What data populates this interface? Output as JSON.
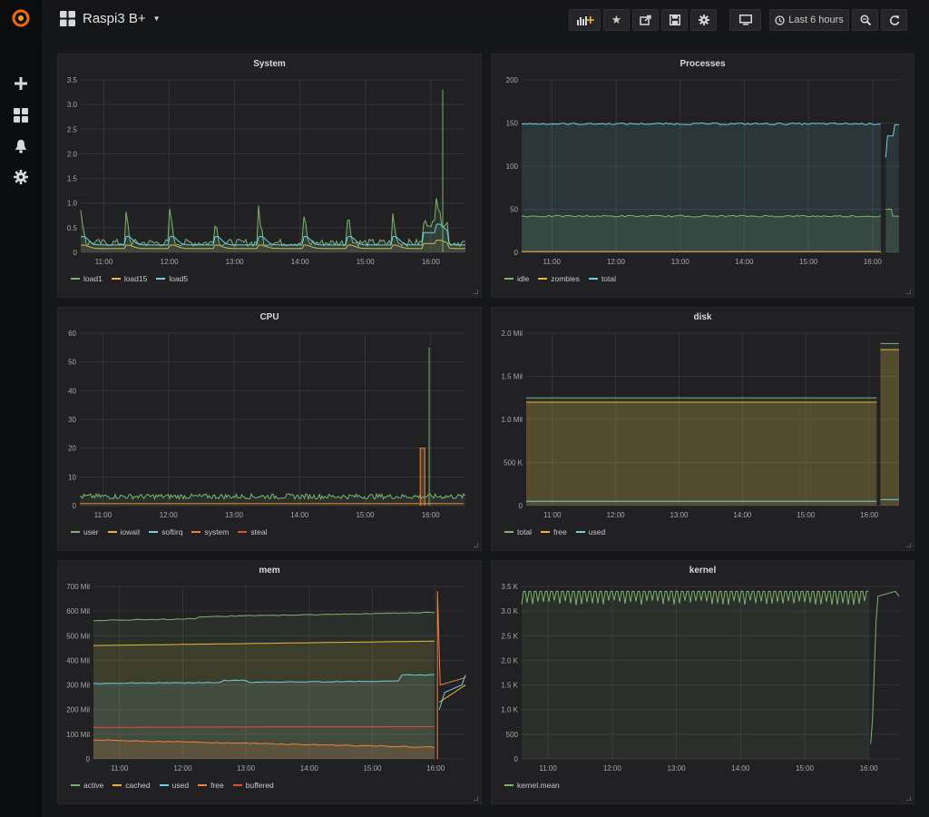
{
  "app": {
    "name": "Grafana"
  },
  "sidemenu": {
    "items": [
      {
        "icon": "plus-icon"
      },
      {
        "icon": "dashboards-icon"
      },
      {
        "icon": "bell-icon"
      },
      {
        "icon": "gear-icon"
      }
    ]
  },
  "dashboard": {
    "title": "Raspi3 B+"
  },
  "toolbar": {
    "add_panel": "add-panel-icon",
    "star": "star-icon",
    "share": "share-icon",
    "save": "save-icon",
    "settings": "gear-icon",
    "cycle_view": "monitor-icon",
    "time_picker_label": "Last 6 hours",
    "zoom_out": "zoom-out-icon",
    "refresh": "refresh-icon"
  },
  "colors": {
    "green": "#7eb26d",
    "yellow": "#eab839",
    "cyan": "#6ed0e0",
    "orange": "#ef843c",
    "red": "#e24d42"
  },
  "panels": [
    {
      "title": "System",
      "y_ticks": [
        "0",
        "0.5",
        "1.0",
        "1.5",
        "2.0",
        "2.5",
        "3.0",
        "3.5"
      ],
      "x_ticks": [
        "11:00",
        "12:00",
        "13:00",
        "14:00",
        "15:00",
        "16:00"
      ],
      "legend": [
        {
          "name": "load1",
          "color": "#7eb26d"
        },
        {
          "name": "load15",
          "color": "#eab839"
        },
        {
          "name": "load5",
          "color": "#6ed0e0"
        }
      ]
    },
    {
      "title": "Processes",
      "y_ticks": [
        "0",
        "50",
        "100",
        "150",
        "200"
      ],
      "x_ticks": [
        "11:00",
        "12:00",
        "13:00",
        "14:00",
        "15:00",
        "16:00"
      ],
      "legend": [
        {
          "name": "idle",
          "color": "#7eb26d"
        },
        {
          "name": "zombies",
          "color": "#eab839"
        },
        {
          "name": "total",
          "color": "#6ed0e0"
        }
      ]
    },
    {
      "title": "CPU",
      "y_ticks": [
        "0",
        "10",
        "20",
        "30",
        "40",
        "50",
        "60"
      ],
      "x_ticks": [
        "11:00",
        "12:00",
        "13:00",
        "14:00",
        "15:00",
        "16:00"
      ],
      "legend": [
        {
          "name": "user",
          "color": "#7eb26d"
        },
        {
          "name": "iowait",
          "color": "#eab839"
        },
        {
          "name": "softirq",
          "color": "#6ed0e0"
        },
        {
          "name": "system",
          "color": "#ef843c"
        },
        {
          "name": "steal",
          "color": "#e24d42"
        }
      ]
    },
    {
      "title": "disk",
      "y_ticks": [
        "0",
        "500 K",
        "1.0 Mil",
        "1.5 Mil",
        "2.0 Mil"
      ],
      "x_ticks": [
        "11:00",
        "12:00",
        "13:00",
        "14:00",
        "15:00",
        "16:00"
      ],
      "legend": [
        {
          "name": "total",
          "color": "#7eb26d"
        },
        {
          "name": "free",
          "color": "#eab839"
        },
        {
          "name": "used",
          "color": "#6ed0e0"
        }
      ]
    },
    {
      "title": "mem",
      "y_ticks": [
        "0",
        "100 Mil",
        "200 Mil",
        "300 Mil",
        "400 Mil",
        "500 Mil",
        "600 Mil",
        "700 Mil"
      ],
      "x_ticks": [
        "11:00",
        "12:00",
        "13:00",
        "14:00",
        "15:00",
        "16:00"
      ],
      "legend": [
        {
          "name": "active",
          "color": "#7eb26d"
        },
        {
          "name": "cached",
          "color": "#eab839"
        },
        {
          "name": "used",
          "color": "#6ed0e0"
        },
        {
          "name": "free",
          "color": "#ef843c"
        },
        {
          "name": "buffered",
          "color": "#e24d42"
        }
      ]
    },
    {
      "title": "kernel",
      "y_ticks": [
        "0",
        "500",
        "1.0 K",
        "1.5 K",
        "2.0 K",
        "2.5 K",
        "3.0 K",
        "3.5 K"
      ],
      "x_ticks": [
        "11:00",
        "12:00",
        "13:00",
        "14:00",
        "15:00",
        "16:00"
      ],
      "legend": [
        {
          "name": "kernel.mean",
          "color": "#7eb26d"
        }
      ]
    }
  ]
}
